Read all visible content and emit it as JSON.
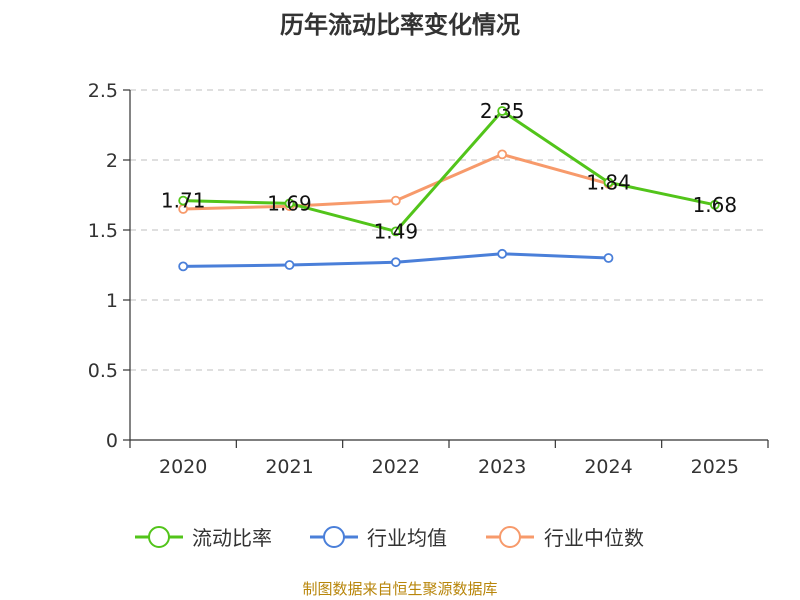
{
  "chart_data": {
    "type": "line",
    "title": "历年流动比率变化情况",
    "categories": [
      "2020",
      "2021",
      "2022",
      "2023",
      "2024",
      "2025"
    ],
    "ylim": [
      0,
      2.5
    ],
    "yticks": [
      "0",
      "0.5",
      "1",
      "1.5",
      "2",
      "2.5"
    ],
    "ytick_values": [
      0,
      0.5,
      1,
      1.5,
      2,
      2.5
    ],
    "series": [
      {
        "name": "流动比率",
        "color": "#52c41a",
        "values": [
          1.71,
          1.69,
          1.49,
          2.35,
          1.84,
          1.68
        ],
        "show_labels": true
      },
      {
        "name": "行业均值",
        "color": "#4a7fd9",
        "values": [
          1.24,
          1.25,
          1.27,
          1.33,
          1.3,
          null
        ],
        "show_labels": false
      },
      {
        "name": "行业中位数",
        "color": "#f79a6b",
        "values": [
          1.65,
          1.67,
          1.71,
          2.04,
          1.83,
          null
        ],
        "show_labels": false
      }
    ],
    "data_labels": [
      "1.71",
      "1.69",
      "1.49",
      "2.35",
      "1.84",
      "1.68"
    ],
    "grid": true,
    "legend_position": "bottom"
  },
  "footer": {
    "source": "制图数据来自恒生聚源数据库"
  }
}
